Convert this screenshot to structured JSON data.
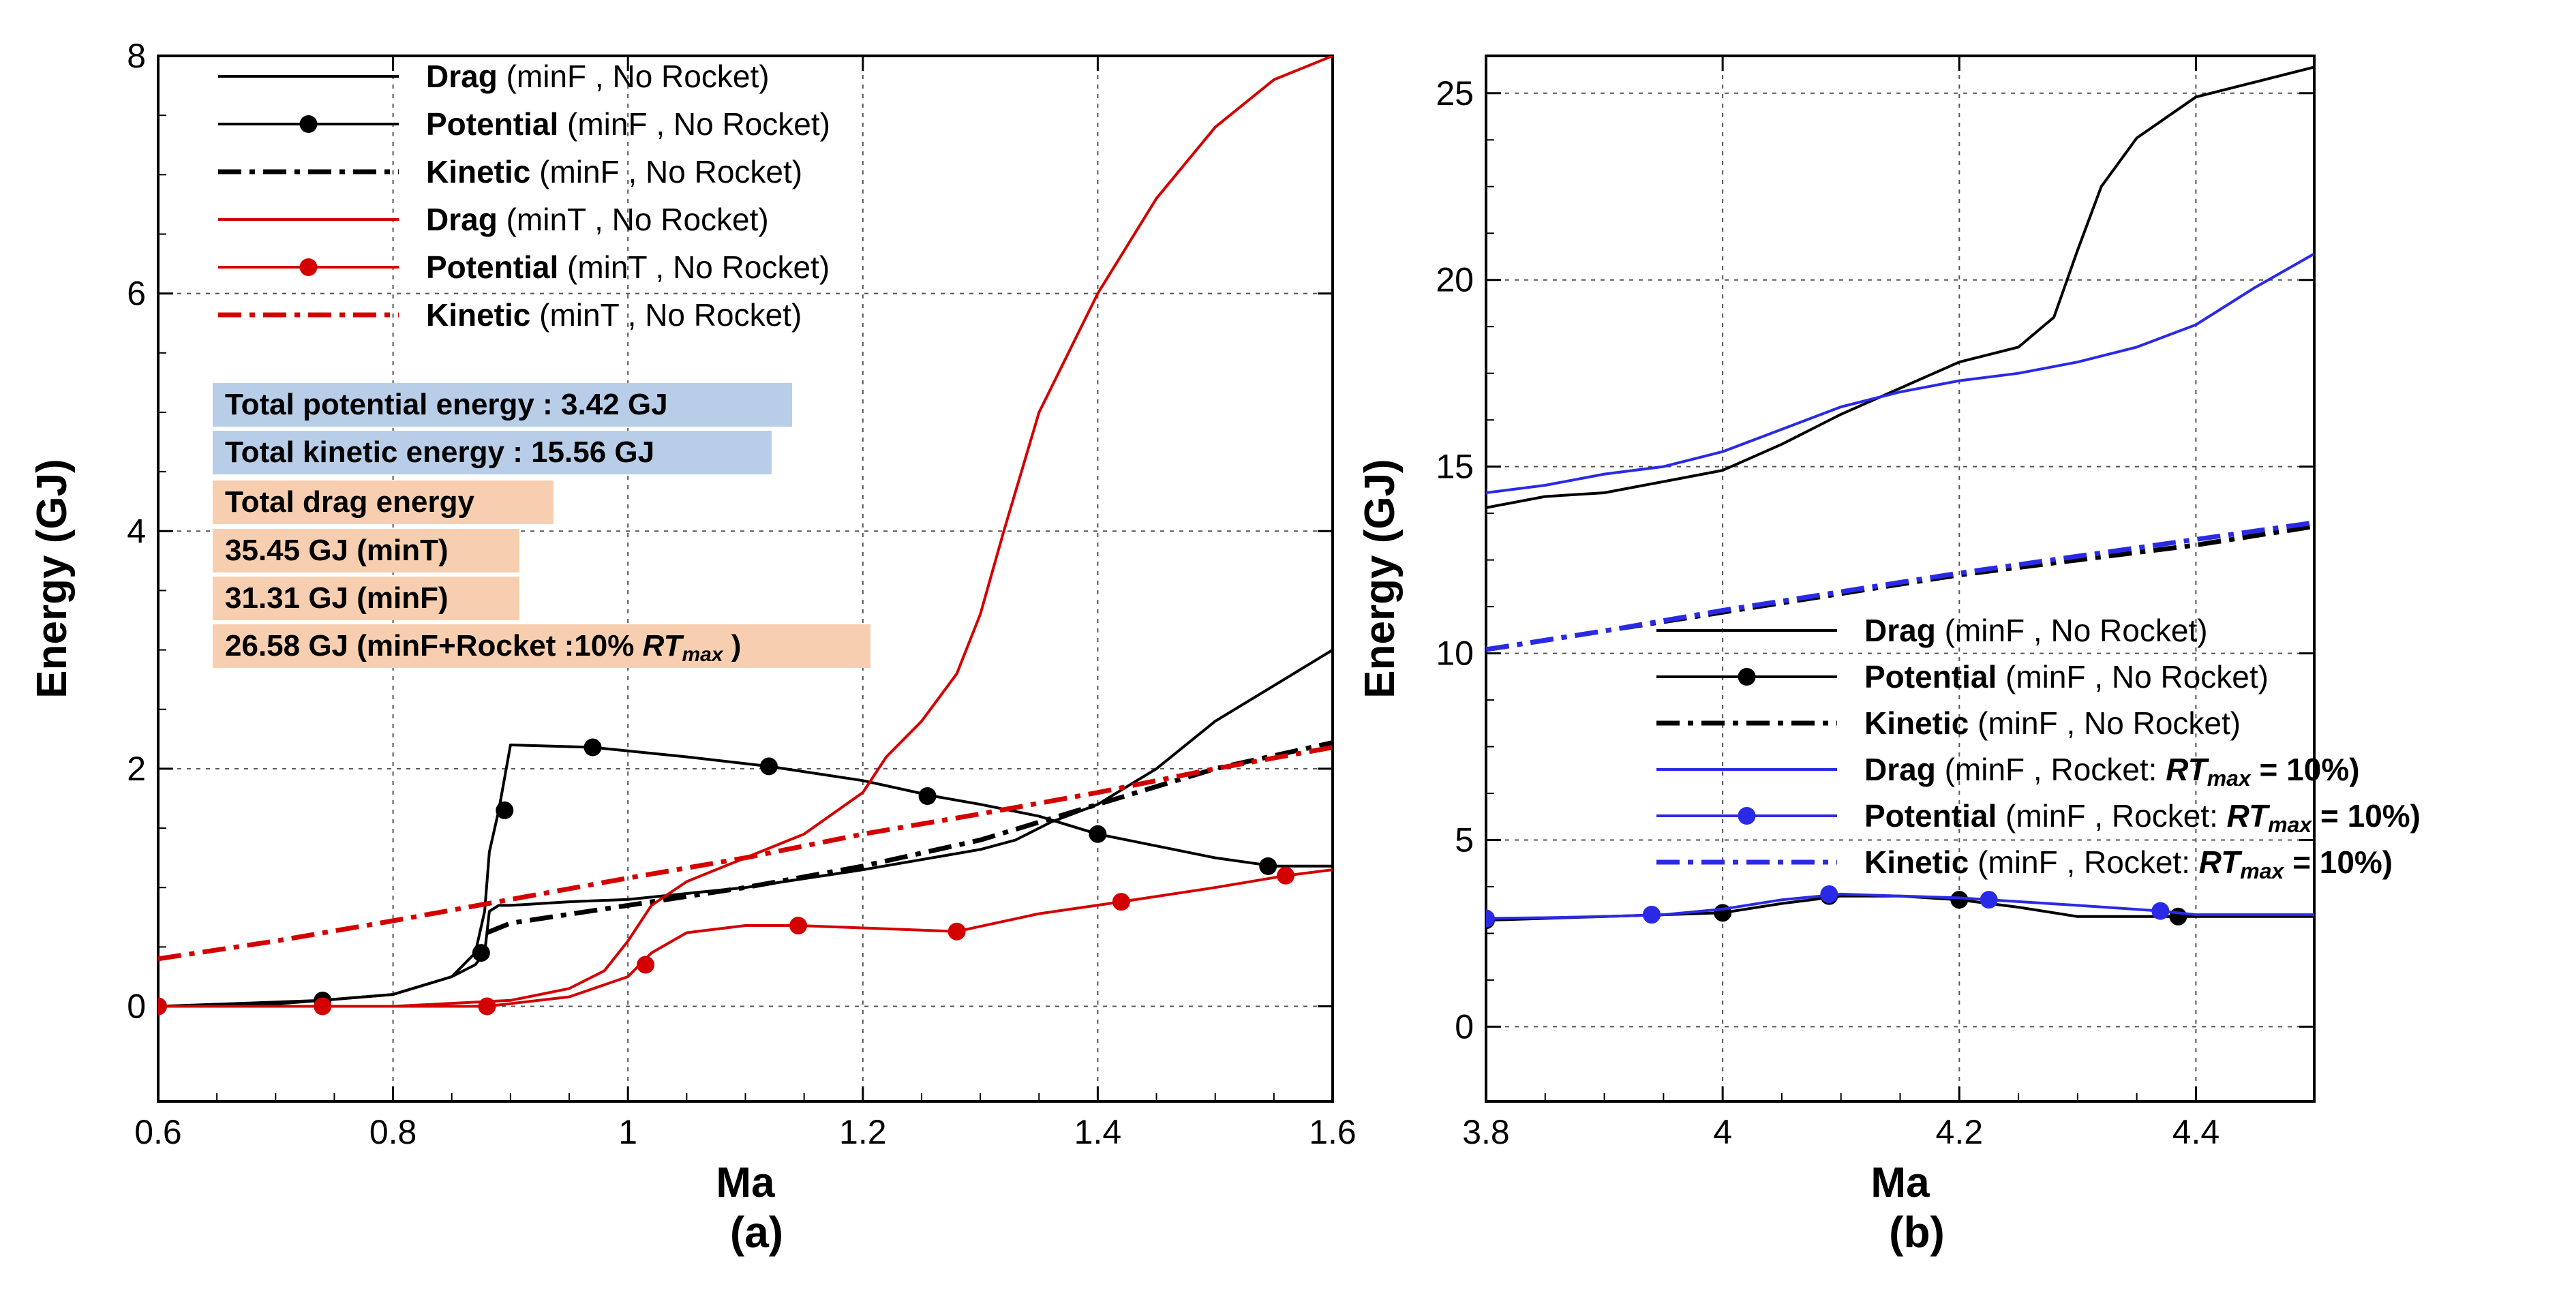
{
  "panel_labels": [
    "(a)",
    "(b)"
  ],
  "chart_data": [
    {
      "type": "line",
      "panel": "(a)",
      "xlabel": "Ma",
      "ylabel": "Energy (GJ)",
      "xlim": [
        0.6,
        1.6
      ],
      "ylim": [
        -0.8,
        8
      ],
      "xticks": [
        0.6,
        0.8,
        1,
        1.2,
        1.4,
        1.6
      ],
      "yticks": [
        0,
        2,
        4,
        6,
        8
      ],
      "xtick_labels": [
        "0.6",
        "0.8",
        "1",
        "1.2",
        "1.4",
        "1.6"
      ],
      "ytick_labels": [
        "0",
        "2",
        "4",
        "6",
        "8"
      ],
      "grid": true,
      "legend_position": "top-left",
      "series": [
        {
          "name": "Drag",
          "case": "(minF , No Rocket)",
          "color": "#000000",
          "style": "solid",
          "marker": false,
          "x": [
            0.6,
            0.7,
            0.8,
            0.85,
            0.87,
            0.878,
            0.882,
            0.89,
            0.9,
            0.95,
            1.0,
            1.1,
            1.2,
            1.3,
            1.33,
            1.36,
            1.4,
            1.45,
            1.5,
            1.55,
            1.6
          ],
          "y": [
            0.0,
            0.02,
            0.1,
            0.25,
            0.35,
            0.45,
            0.8,
            0.85,
            0.85,
            0.88,
            0.9,
            1.0,
            1.15,
            1.32,
            1.4,
            1.55,
            1.7,
            2.0,
            2.4,
            2.7,
            3.0
          ]
        },
        {
          "name": "Potential",
          "case": "(minF , No Rocket)",
          "color": "#000000",
          "style": "solid",
          "marker": true,
          "x": [
            0.6,
            0.74,
            0.8,
            0.85,
            0.87,
            0.878,
            0.882,
            0.89,
            0.9,
            0.97,
            1.05,
            1.12,
            1.2,
            1.26,
            1.3,
            1.35,
            1.4,
            1.45,
            1.5,
            1.55,
            1.6
          ],
          "y": [
            0.0,
            0.05,
            0.1,
            0.25,
            0.45,
            0.8,
            1.3,
            1.65,
            2.2,
            2.18,
            2.1,
            2.02,
            1.9,
            1.77,
            1.7,
            1.6,
            1.45,
            1.35,
            1.25,
            1.18,
            1.18
          ],
          "markers_x": [
            0.6,
            0.74,
            0.875,
            0.895,
            0.97,
            1.12,
            1.255,
            1.4,
            1.545
          ],
          "markers_y": [
            0.0,
            0.05,
            0.45,
            1.65,
            2.18,
            2.02,
            1.77,
            1.45,
            1.18
          ]
        },
        {
          "name": "Kinetic",
          "case": "(minF , No Rocket)",
          "color": "#000000",
          "style": "dashdot",
          "marker": false,
          "x": [
            0.88,
            0.9,
            1.0,
            1.1,
            1.2,
            1.3,
            1.4,
            1.5,
            1.6
          ],
          "y": [
            0.62,
            0.7,
            0.85,
            1.0,
            1.18,
            1.4,
            1.7,
            2.0,
            2.22
          ]
        },
        {
          "name": "Drag",
          "case": "(minT , No Rocket)",
          "color": "#d40000",
          "style": "solid",
          "marker": false,
          "x": [
            0.6,
            0.8,
            0.9,
            0.95,
            0.98,
            1.0,
            1.02,
            1.05,
            1.1,
            1.15,
            1.2,
            1.22,
            1.25,
            1.28,
            1.3,
            1.32,
            1.35,
            1.4,
            1.45,
            1.5,
            1.55,
            1.6
          ],
          "y": [
            0.0,
            0.0,
            0.05,
            0.15,
            0.3,
            0.55,
            0.85,
            1.05,
            1.25,
            1.45,
            1.8,
            2.1,
            2.4,
            2.8,
            3.3,
            4.0,
            5.0,
            6.0,
            6.8,
            7.4,
            7.8,
            8.0
          ]
        },
        {
          "name": "Potential",
          "case": "(minT , No Rocket)",
          "color": "#d40000",
          "style": "solid",
          "marker": true,
          "x": [
            0.6,
            0.74,
            0.88,
            0.95,
            1.0,
            1.02,
            1.05,
            1.1,
            1.145,
            1.2,
            1.28,
            1.35,
            1.42,
            1.5,
            1.56,
            1.6
          ],
          "y": [
            0.0,
            0.0,
            0.0,
            0.08,
            0.25,
            0.45,
            0.62,
            0.68,
            0.68,
            0.66,
            0.63,
            0.78,
            0.88,
            1.0,
            1.1,
            1.15
          ],
          "markers_x": [
            0.6,
            0.74,
            0.88,
            1.015,
            1.145,
            1.28,
            1.42,
            1.56
          ],
          "markers_y": [
            0.0,
            0.0,
            0.0,
            0.35,
            0.68,
            0.63,
            0.88,
            1.1
          ]
        },
        {
          "name": "Kinetic",
          "case": "(minT , No Rocket)",
          "color": "#d40000",
          "style": "dashdot",
          "marker": false,
          "x": [
            0.6,
            0.7,
            0.8,
            0.9,
            1.0,
            1.1,
            1.2,
            1.3,
            1.4,
            1.5,
            1.6
          ],
          "y": [
            0.4,
            0.55,
            0.72,
            0.9,
            1.08,
            1.25,
            1.45,
            1.62,
            1.8,
            2.0,
            2.18
          ]
        }
      ],
      "annotations": [
        {
          "text": "Total potential energy : 3.42 GJ",
          "color": "#b8cde8"
        },
        {
          "text": "Total kinetic energy : 15.56 GJ",
          "color": "#b8cde8"
        },
        {
          "text": "Total drag energy",
          "color": "#f7cfb0"
        },
        {
          "text": "35.45 GJ (minT)",
          "color": "#f7cfb0"
        },
        {
          "text": "31.31 GJ (minF)",
          "color": "#f7cfb0"
        },
        {
          "text": "26.58 GJ (minF+Rocket :10% ",
          "italic_part": "RT",
          "sub_part": "max",
          "suffix": " )",
          "color": "#f7cfb0"
        }
      ]
    },
    {
      "type": "line",
      "panel": "(b)",
      "xlabel": "Ma",
      "ylabel": "Energy (GJ)",
      "xlim": [
        3.8,
        4.5
      ],
      "ylim": [
        -2,
        26
      ],
      "xticks": [
        3.8,
        4.0,
        4.2,
        4.4
      ],
      "yticks": [
        0,
        5,
        10,
        15,
        20,
        25
      ],
      "xtick_labels": [
        "3.8",
        "4",
        "4.2",
        "4.4"
      ],
      "ytick_labels": [
        "0",
        "5",
        "10",
        "15",
        "20",
        "25"
      ],
      "grid": true,
      "legend_position": "bottom-right",
      "series": [
        {
          "name": "Drag",
          "case": "(minF , No Rocket)",
          "color": "#000000",
          "style": "solid",
          "marker": false,
          "x": [
            3.8,
            3.85,
            3.9,
            3.95,
            4.0,
            4.05,
            4.1,
            4.15,
            4.2,
            4.25,
            4.28,
            4.3,
            4.32,
            4.35,
            4.4,
            4.45,
            4.5
          ],
          "y": [
            13.9,
            14.2,
            14.3,
            14.6,
            14.9,
            15.6,
            16.4,
            17.1,
            17.8,
            18.2,
            19.0,
            20.8,
            22.5,
            23.8,
            24.9,
            25.3,
            25.7
          ]
        },
        {
          "name": "Potential",
          "case": "(minF , No Rocket)",
          "color": "#000000",
          "style": "solid",
          "marker": true,
          "x": [
            3.8,
            3.85,
            3.9,
            3.95,
            4.0,
            4.05,
            4.1,
            4.15,
            4.2,
            4.25,
            4.3,
            4.35,
            4.39,
            4.45,
            4.5
          ],
          "y": [
            2.85,
            2.9,
            2.95,
            3.0,
            3.05,
            3.3,
            3.5,
            3.5,
            3.4,
            3.2,
            2.95,
            2.95,
            2.95,
            2.95,
            2.95
          ],
          "markers_x": [
            3.8,
            3.94,
            4.0,
            4.09,
            4.2,
            4.385
          ],
          "markers_y": [
            2.85,
            3.0,
            3.05,
            3.5,
            3.4,
            2.95
          ]
        },
        {
          "name": "Kinetic",
          "case": "(minF , No Rocket)",
          "color": "#000000",
          "style": "dashdot",
          "marker": false,
          "x": [
            3.8,
            3.9,
            4.0,
            4.1,
            4.2,
            4.3,
            4.4,
            4.5
          ],
          "y": [
            10.1,
            10.6,
            11.1,
            11.6,
            12.1,
            12.5,
            12.9,
            13.4
          ]
        },
        {
          "name": "Drag",
          "case": "(minF , Rocket: ",
          "case_italic": "RT",
          "case_sub": "max",
          "case_suffix": " = 10%)",
          "color": "#2a2ae6",
          "style": "solid",
          "marker": false,
          "x": [
            3.8,
            3.85,
            3.9,
            3.95,
            4.0,
            4.05,
            4.1,
            4.15,
            4.2,
            4.25,
            4.3,
            4.35,
            4.4,
            4.45,
            4.5
          ],
          "y": [
            14.3,
            14.5,
            14.8,
            15.0,
            15.4,
            16.0,
            16.6,
            17.0,
            17.3,
            17.5,
            17.8,
            18.2,
            18.8,
            19.8,
            20.7
          ]
        },
        {
          "name": "Potential",
          "case": "(minF , Rocket: ",
          "case_italic": "RT",
          "case_sub": "max",
          "case_suffix": " = 10%)",
          "color": "#2a2ae6",
          "style": "solid",
          "marker": true,
          "x": [
            3.8,
            3.85,
            3.9,
            3.95,
            4.0,
            4.05,
            4.1,
            4.15,
            4.2,
            4.25,
            4.3,
            4.37,
            4.4,
            4.45,
            4.5
          ],
          "y": [
            2.9,
            2.92,
            2.95,
            3.0,
            3.15,
            3.4,
            3.55,
            3.5,
            3.45,
            3.35,
            3.25,
            3.1,
            3.0,
            3.0,
            3.0
          ],
          "markers_x": [
            3.8,
            3.94,
            4.09,
            4.225,
            4.37
          ],
          "markers_y": [
            2.9,
            3.0,
            3.55,
            3.4,
            3.1
          ]
        },
        {
          "name": "Kinetic",
          "case": "(minF , Rocket: ",
          "case_italic": "RT",
          "case_sub": "max",
          "case_suffix": " = 10%)",
          "color": "#2a2ae6",
          "style": "dashdot",
          "marker": false,
          "x": [
            3.8,
            3.9,
            4.0,
            4.1,
            4.2,
            4.3,
            4.4,
            4.5
          ],
          "y": [
            10.1,
            10.6,
            11.15,
            11.65,
            12.15,
            12.6,
            13.05,
            13.5
          ]
        }
      ]
    }
  ]
}
